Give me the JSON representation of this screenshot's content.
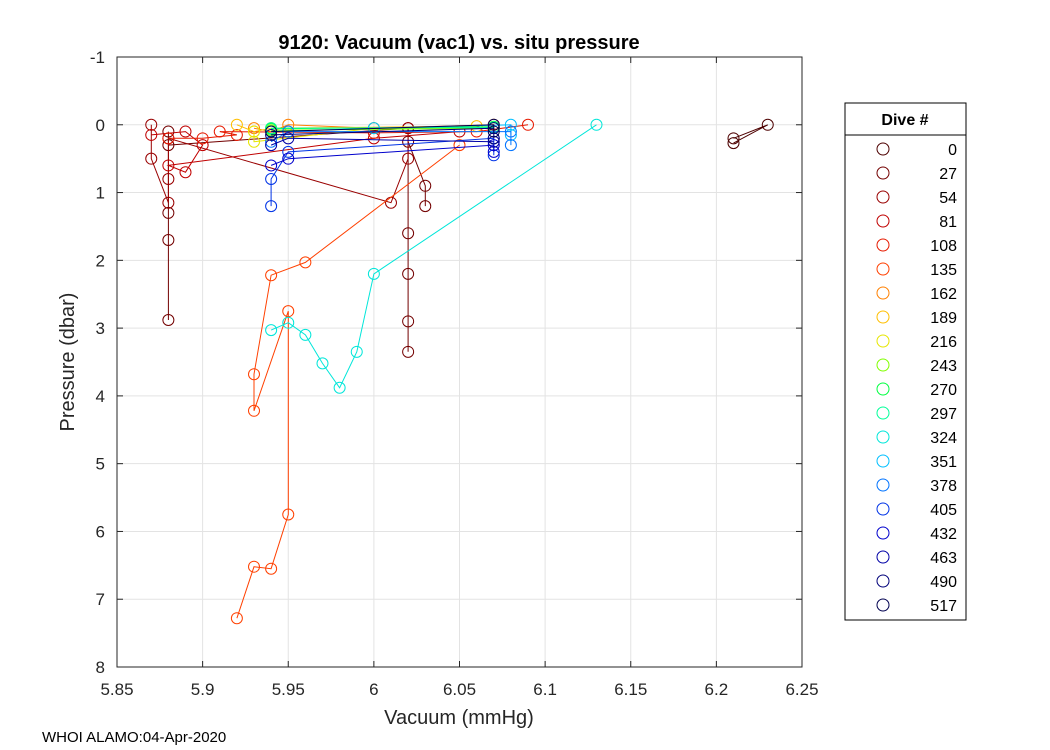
{
  "chart_data": {
    "type": "scatter",
    "title": "9120: Vacuum (vac1) vs. situ pressure",
    "xlabel": "Vacuum (mmHg)",
    "ylabel": "Pressure (dbar)",
    "xlim": [
      5.85,
      6.25
    ],
    "ylim": [
      -1,
      8
    ],
    "y_reversed": true,
    "grid": true,
    "x_ticks": [
      5.85,
      5.9,
      5.95,
      6.0,
      6.05,
      6.1,
      6.15,
      6.2,
      6.25
    ],
    "x_tick_labels": [
      "5.85",
      "5.9",
      "5.95",
      "6",
      "6.05",
      "6.1",
      "6.15",
      "6.2",
      "6.25"
    ],
    "y_ticks": [
      -1,
      0,
      1,
      2,
      3,
      4,
      5,
      6,
      7,
      8
    ],
    "y_tick_labels": [
      "-1",
      "0",
      "1",
      "2",
      "3",
      "4",
      "5",
      "6",
      "7",
      "8"
    ],
    "legend_title": "Dive #",
    "legend_position": "outside-right",
    "footer": "WHOI ALAMO:04-Apr-2020",
    "series": [
      {
        "name": "0",
        "color": "#4d0000",
        "points": [
          [
            6.21,
            0.2
          ],
          [
            6.23,
            0.0
          ],
          [
            6.21,
            0.27
          ]
        ]
      },
      {
        "name": "27",
        "color": "#730000",
        "points": [
          [
            5.88,
            0.1
          ],
          [
            5.88,
            1.7
          ],
          [
            5.88,
            2.88
          ],
          [
            5.88,
            1.3
          ],
          [
            5.88,
            0.3
          ],
          [
            6.02,
            0.05
          ],
          [
            6.02,
            2.2
          ],
          [
            6.02,
            3.35
          ],
          [
            6.02,
            2.9
          ],
          [
            6.02,
            1.6
          ],
          [
            6.02,
            0.25
          ],
          [
            6.03,
            0.9
          ],
          [
            6.03,
            1.2
          ]
        ]
      },
      {
        "name": "54",
        "color": "#990000",
        "points": [
          [
            5.87,
            0.0
          ],
          [
            5.87,
            0.5
          ],
          [
            5.88,
            1.15
          ],
          [
            5.88,
            0.8
          ],
          [
            5.88,
            0.2
          ],
          [
            6.01,
            1.15
          ],
          [
            6.02,
            0.5
          ],
          [
            6.02,
            0.05
          ]
        ]
      },
      {
        "name": "81",
        "color": "#c00000",
        "points": [
          [
            5.87,
            0.15
          ],
          [
            5.89,
            0.1
          ],
          [
            5.9,
            0.3
          ],
          [
            5.89,
            0.7
          ],
          [
            5.88,
            0.6
          ],
          [
            6.0,
            0.2
          ],
          [
            6.05,
            0.1
          ]
        ]
      },
      {
        "name": "108",
        "color": "#e61a00",
        "points": [
          [
            5.88,
            0.2
          ],
          [
            5.9,
            0.2
          ],
          [
            5.92,
            0.15
          ],
          [
            5.91,
            0.1
          ],
          [
            6.0,
            0.12
          ],
          [
            6.06,
            0.1
          ],
          [
            6.09,
            0.0
          ]
        ]
      },
      {
        "name": "135",
        "color": "#ff4000",
        "points": [
          [
            5.92,
            7.28
          ],
          [
            5.93,
            6.52
          ],
          [
            5.94,
            6.55
          ],
          [
            5.95,
            5.75
          ],
          [
            5.95,
            2.75
          ],
          [
            5.93,
            4.22
          ],
          [
            5.93,
            3.68
          ],
          [
            5.94,
            2.22
          ],
          [
            5.96,
            2.03
          ],
          [
            6.05,
            0.3
          ]
        ]
      },
      {
        "name": "162",
        "color": "#ff8000",
        "points": [
          [
            5.93,
            0.05
          ],
          [
            5.94,
            0.1
          ],
          [
            5.95,
            0.0
          ],
          [
            6.0,
            0.05
          ],
          [
            6.07,
            0.0
          ]
        ]
      },
      {
        "name": "189",
        "color": "#ffbf00",
        "points": [
          [
            5.92,
            0.0
          ],
          [
            5.93,
            0.1
          ],
          [
            5.94,
            0.05
          ],
          [
            6.06,
            0.02
          ]
        ]
      },
      {
        "name": "216",
        "color": "#e6e600",
        "points": [
          [
            5.93,
            0.1
          ],
          [
            5.93,
            0.25
          ],
          [
            6.0,
            0.05
          ],
          [
            6.07,
            0.05
          ]
        ]
      },
      {
        "name": "243",
        "color": "#80ff00",
        "points": [
          [
            5.94,
            0.08
          ],
          [
            6.07,
            0.05
          ]
        ]
      },
      {
        "name": "270",
        "color": "#00ff40",
        "points": [
          [
            5.94,
            0.06
          ],
          [
            6.07,
            0.03
          ]
        ]
      },
      {
        "name": "297",
        "color": "#00ff99",
        "points": [
          [
            5.94,
            0.05
          ],
          [
            6.07,
            0.04
          ]
        ]
      },
      {
        "name": "324",
        "color": "#00e6d9",
        "points": [
          [
            5.94,
            3.03
          ],
          [
            5.95,
            2.92
          ],
          [
            5.96,
            3.1
          ],
          [
            5.97,
            3.52
          ],
          [
            5.98,
            3.88
          ],
          [
            5.99,
            3.35
          ],
          [
            6.0,
            2.2
          ],
          [
            6.13,
            0.0
          ]
        ]
      },
      {
        "name": "351",
        "color": "#00bfff",
        "points": [
          [
            5.94,
            0.1
          ],
          [
            6.0,
            0.05
          ],
          [
            6.08,
            0.0
          ],
          [
            6.08,
            0.15
          ]
        ]
      },
      {
        "name": "378",
        "color": "#0073ff",
        "points": [
          [
            5.94,
            0.25
          ],
          [
            5.95,
            0.1
          ],
          [
            6.08,
            0.1
          ],
          [
            6.08,
            0.3
          ]
        ]
      },
      {
        "name": "405",
        "color": "#0033e6",
        "points": [
          [
            5.94,
            1.2
          ],
          [
            5.94,
            0.8
          ],
          [
            5.95,
            0.4
          ],
          [
            6.07,
            0.2
          ],
          [
            6.07,
            0.45
          ]
        ]
      },
      {
        "name": "432",
        "color": "#0000cc",
        "points": [
          [
            5.94,
            0.6
          ],
          [
            5.95,
            0.5
          ],
          [
            6.07,
            0.3
          ],
          [
            6.07,
            0.4
          ]
        ]
      },
      {
        "name": "463",
        "color": "#0000a6",
        "points": [
          [
            5.94,
            0.3
          ],
          [
            5.95,
            0.2
          ],
          [
            6.07,
            0.25
          ]
        ]
      },
      {
        "name": "490",
        "color": "#00007a",
        "points": [
          [
            5.94,
            0.15
          ],
          [
            6.07,
            0.05
          ],
          [
            6.07,
            0.2
          ]
        ]
      },
      {
        "name": "517",
        "color": "#000050",
        "points": [
          [
            5.94,
            0.1
          ],
          [
            6.07,
            0.0
          ],
          [
            6.07,
            0.1
          ]
        ]
      }
    ]
  }
}
